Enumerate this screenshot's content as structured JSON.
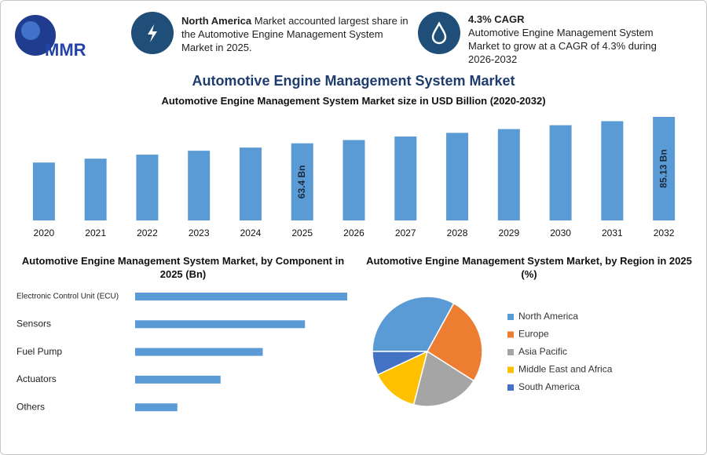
{
  "header": {
    "logo": "MMR",
    "title": "Automotive Engine Management System Market",
    "info": [
      {
        "highlight": "North America",
        "text": "Market accounted largest share in the Automotive Engine Management System Market in 2025."
      },
      {
        "highlight": "4.3% CAGR",
        "text": "Automotive Engine Management System Market to grow at a CAGR of 4.3% during 2026-2032"
      }
    ]
  },
  "chart_data": [
    {
      "type": "bar",
      "title": "Automotive Engine Management System Market size in USD Billion (2020-2032)",
      "categories": [
        "2020",
        "2021",
        "2022",
        "2023",
        "2024",
        "2025",
        "2026",
        "2027",
        "2028",
        "2029",
        "2030",
        "2031",
        "2032"
      ],
      "values": [
        47.6,
        50.8,
        54.1,
        57.3,
        59.9,
        63.4,
        66.1,
        69.0,
        72.0,
        75.1,
        78.3,
        81.6,
        85.13
      ],
      "value_labels": [
        null,
        null,
        null,
        null,
        null,
        "63.4 Bn",
        null,
        null,
        null,
        null,
        null,
        null,
        "85.13 Bn"
      ],
      "color": "#5b9bd5"
    },
    {
      "type": "hbar",
      "title": "Automotive Engine Management System Market, by Component in 2025 (Bn)",
      "categories": [
        "Electronic Control Unit (ECU)",
        "Sensors",
        "Fuel Pump",
        "Actuators",
        "Others"
      ],
      "values": [
        21.1,
        16.9,
        12.7,
        8.5,
        4.2
      ],
      "color": "#5b9bd5"
    },
    {
      "type": "pie",
      "title": "Automotive Engine Management System Market, by Region in 2025 (%)",
      "categories": [
        "North America",
        "Europe",
        "Asia Pacific",
        "Middle East and Africa",
        "South America"
      ],
      "values": [
        33,
        26,
        20,
        14,
        7
      ],
      "colors": [
        "#5b9bd5",
        "#ed7d31",
        "#a5a5a5",
        "#ffc000",
        "#4472c4"
      ],
      "legend": "right"
    }
  ]
}
